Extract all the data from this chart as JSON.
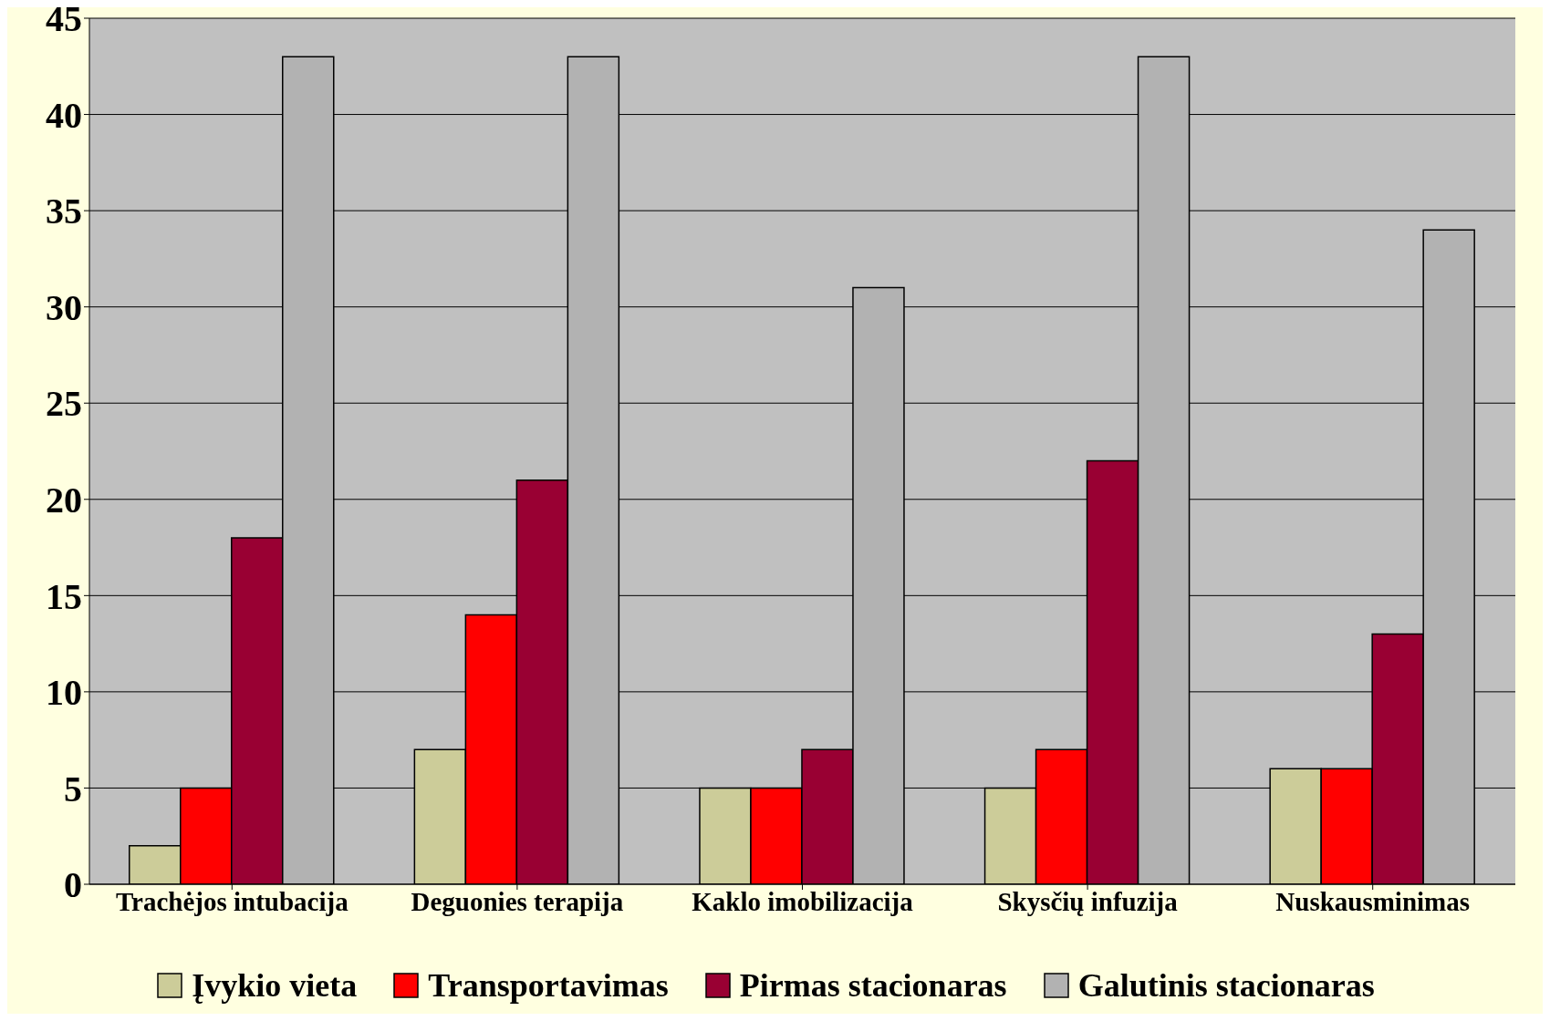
{
  "chart_data": {
    "type": "bar",
    "categories": [
      "Trachėjos intubacija",
      "Deguonies terapija",
      "Kaklo imobilizacija",
      "Skysčių infuzija",
      "Nuskausminimas"
    ],
    "series": [
      {
        "name": "Įvykio vieta",
        "color": "#cccc99",
        "values": [
          2,
          7,
          5,
          5,
          6
        ]
      },
      {
        "name": "Transportavimas",
        "color": "#ff0000",
        "values": [
          5,
          14,
          5,
          7,
          6
        ]
      },
      {
        "name": "Pirmas stacionaras",
        "color": "#990033",
        "values": [
          18,
          21,
          7,
          22,
          13
        ]
      },
      {
        "name": "Galutinis stacionaras",
        "color": "#b2b2b2",
        "values": [
          43,
          43,
          31,
          43,
          34
        ]
      }
    ],
    "ylim": [
      0,
      45
    ],
    "yticks": [
      0,
      5,
      10,
      15,
      20,
      25,
      30,
      35,
      40,
      45
    ],
    "grid": "y",
    "legend": "bottom"
  }
}
